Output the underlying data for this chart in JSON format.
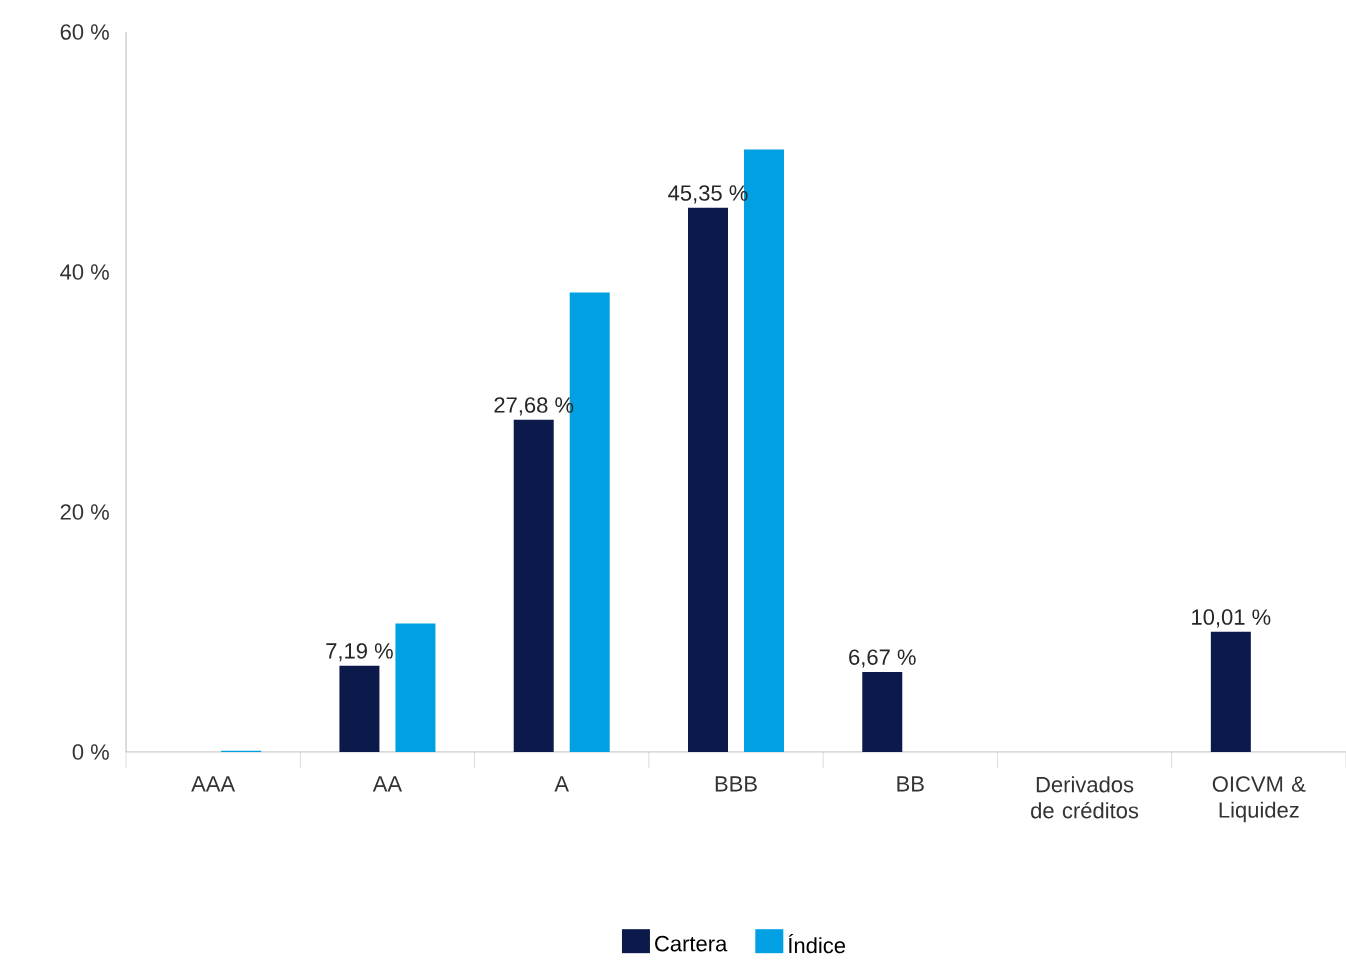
{
  "chart_data": {
    "type": "bar",
    "categories": [
      "AAA",
      "AA",
      "A",
      "BBB",
      "BB",
      "Derivados de créditos",
      "OICVM & Liquidez"
    ],
    "series": [
      {
        "name": "Cartera",
        "color": "#0c1a4b",
        "values": [
          0,
          7.19,
          27.68,
          45.35,
          6.67,
          0,
          10.01
        ],
        "value_labels": [
          null,
          "7,19 %",
          "27,68 %",
          "45,35 %",
          "6,67 %",
          null,
          "10,01 %"
        ]
      },
      {
        "name": "Índice",
        "color": "#00a0e3",
        "values": [
          0.1,
          10.7,
          38.3,
          50.2,
          0,
          0,
          0
        ]
      }
    ],
    "ylim": [
      0,
      60
    ],
    "yticks": [
      {
        "value": 0,
        "label": "0 %"
      },
      {
        "value": 20,
        "label": "20 %"
      },
      {
        "value": 40,
        "label": "40 %"
      },
      {
        "value": 60,
        "label": "60 %"
      }
    ],
    "legend": "bottom"
  }
}
